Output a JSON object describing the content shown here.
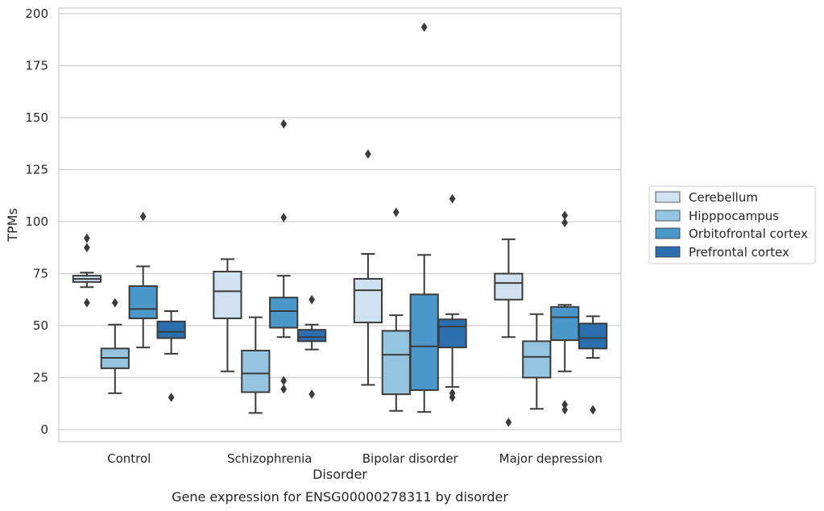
{
  "caption": "Gene expression for ENSG00000278311 by disorder",
  "chart_data": {
    "type": "box",
    "xlabel": "Disorder",
    "ylabel": "TPMs",
    "ylim": [
      -5,
      203
    ],
    "yticks": [
      0,
      25,
      50,
      75,
      100,
      125,
      150,
      175,
      200
    ],
    "grid": true,
    "legend_position": "right",
    "categories": [
      "Control",
      "Schizophrenia",
      "Bipolar disorder",
      "Major depression"
    ],
    "series": [
      {
        "name": "Cerebellum",
        "color": "#d0e1f2",
        "boxes": [
          {
            "whisker_low": 68.5,
            "q1": 71,
            "median": 72.5,
            "q3": 74,
            "whisker_high": 75.5,
            "outliers": [
              92,
              87.5,
              61
            ]
          },
          {
            "whisker_low": 28,
            "q1": 53.5,
            "median": 66.5,
            "q3": 76,
            "whisker_high": 82,
            "outliers": []
          },
          {
            "whisker_low": 21.5,
            "q1": 51.5,
            "median": 67,
            "q3": 72.5,
            "whisker_high": 84.5,
            "outliers": [
              132.5
            ]
          },
          {
            "whisker_low": 44.5,
            "q1": 62.5,
            "median": 70.5,
            "q3": 75,
            "whisker_high": 91.5,
            "outliers": [
              3.5
            ]
          }
        ]
      },
      {
        "name": "Hipppocampus",
        "color": "#94c4df",
        "boxes": [
          {
            "whisker_low": 17.5,
            "q1": 29.5,
            "median": 34.5,
            "q3": 39,
            "whisker_high": 50.5,
            "outliers": [
              61
            ]
          },
          {
            "whisker_low": 8,
            "q1": 18,
            "median": 27,
            "q3": 38,
            "whisker_high": 54,
            "outliers": []
          },
          {
            "whisker_low": 9,
            "q1": 17,
            "median": 36,
            "q3": 47.5,
            "whisker_high": 55,
            "outliers": [
              104.5
            ]
          },
          {
            "whisker_low": 10,
            "q1": 25,
            "median": 35,
            "q3": 42.5,
            "whisker_high": 55.5,
            "outliers": []
          }
        ]
      },
      {
        "name": "Orbitofrontal cortex",
        "color": "#4a98c9",
        "boxes": [
          {
            "whisker_low": 39.5,
            "q1": 53.5,
            "median": 58,
            "q3": 69,
            "whisker_high": 78.5,
            "outliers": [
              102.5
            ]
          },
          {
            "whisker_low": 44.5,
            "q1": 49,
            "median": 57,
            "q3": 63.5,
            "whisker_high": 74,
            "outliers": [
              147,
              102,
              23.5,
              19.5
            ]
          },
          {
            "whisker_low": 8.5,
            "q1": 19,
            "median": 40,
            "q3": 65,
            "whisker_high": 84,
            "outliers": [
              193.5
            ]
          },
          {
            "whisker_low": 28,
            "q1": 43,
            "median": 54,
            "q3": 59,
            "whisker_high": 60,
            "outliers": [
              103,
              99.5,
              12,
              9.5
            ]
          }
        ]
      },
      {
        "name": "Prefrontal cortex",
        "color": "#2c6fb1",
        "boxes": [
          {
            "whisker_low": 36.5,
            "q1": 44,
            "median": 47,
            "q3": 52,
            "whisker_high": 57,
            "outliers": [
              15.5
            ]
          },
          {
            "whisker_low": 38.5,
            "q1": 42.5,
            "median": 44.5,
            "q3": 48,
            "whisker_high": 50.5,
            "outliers": [
              62.5,
              17
            ]
          },
          {
            "whisker_low": 20.5,
            "q1": 39.5,
            "median": 49.5,
            "q3": 53,
            "whisker_high": 55.5,
            "outliers": [
              111,
              17.5,
              15.5
            ]
          },
          {
            "whisker_low": 34.5,
            "q1": 39,
            "median": 44,
            "q3": 51,
            "whisker_high": 54.5,
            "outliers": [
              9.5
            ]
          }
        ]
      }
    ]
  }
}
